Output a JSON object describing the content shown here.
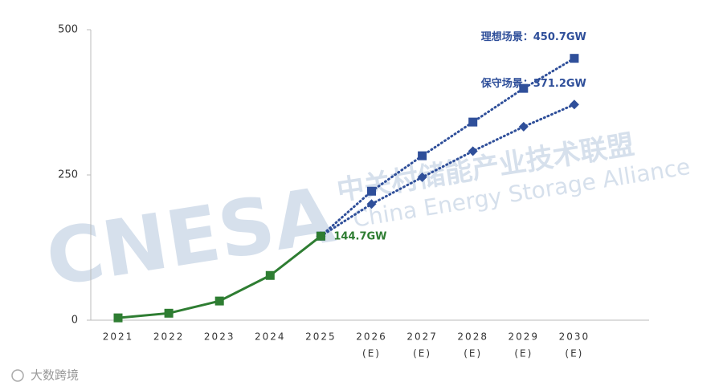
{
  "chart_data": {
    "type": "line",
    "categories": [
      "2021",
      "2022",
      "2023",
      "2024",
      "2025",
      "2026",
      "2027",
      "2028",
      "2029",
      "2030"
    ],
    "category_notes": [
      null,
      null,
      null,
      null,
      null,
      "(E)",
      "(E)",
      "(E)",
      "(E)",
      "(E)"
    ],
    "series": [
      {
        "color": "#2e7d32",
        "dash": false,
        "marker": "square",
        "values": [
          4,
          12,
          33,
          77,
          144.7,
          null,
          null,
          null,
          null,
          null
        ],
        "value_labels": [
          null,
          null,
          null,
          null,
          "144.7GW",
          null,
          null,
          null,
          null,
          null
        ]
      },
      {
        "color": "#2f4f9a",
        "dash": true,
        "marker": "square",
        "values": [
          null,
          null,
          null,
          null,
          144.7,
          222,
          283,
          341,
          399,
          450.7
        ],
        "value_labels": [
          null,
          null,
          null,
          null,
          null,
          null,
          null,
          null,
          null,
          "理想场景：450.7GW"
        ]
      },
      {
        "color": "#2f4f9a",
        "dash": true,
        "marker": "diamond",
        "values": [
          null,
          null,
          null,
          null,
          144.7,
          200,
          246,
          291,
          333,
          371.2
        ],
        "value_labels": [
          null,
          null,
          null,
          null,
          null,
          null,
          null,
          null,
          null,
          "保守场景：371.2GW"
        ]
      }
    ],
    "ylim": [
      0,
      500
    ],
    "yticks": [
      0,
      250,
      500
    ],
    "watermarks": [
      "CNESA",
      "中关村储能产业技术联盟",
      "China Energy Storage Alliance"
    ],
    "footer_logo": "大数跨境"
  }
}
